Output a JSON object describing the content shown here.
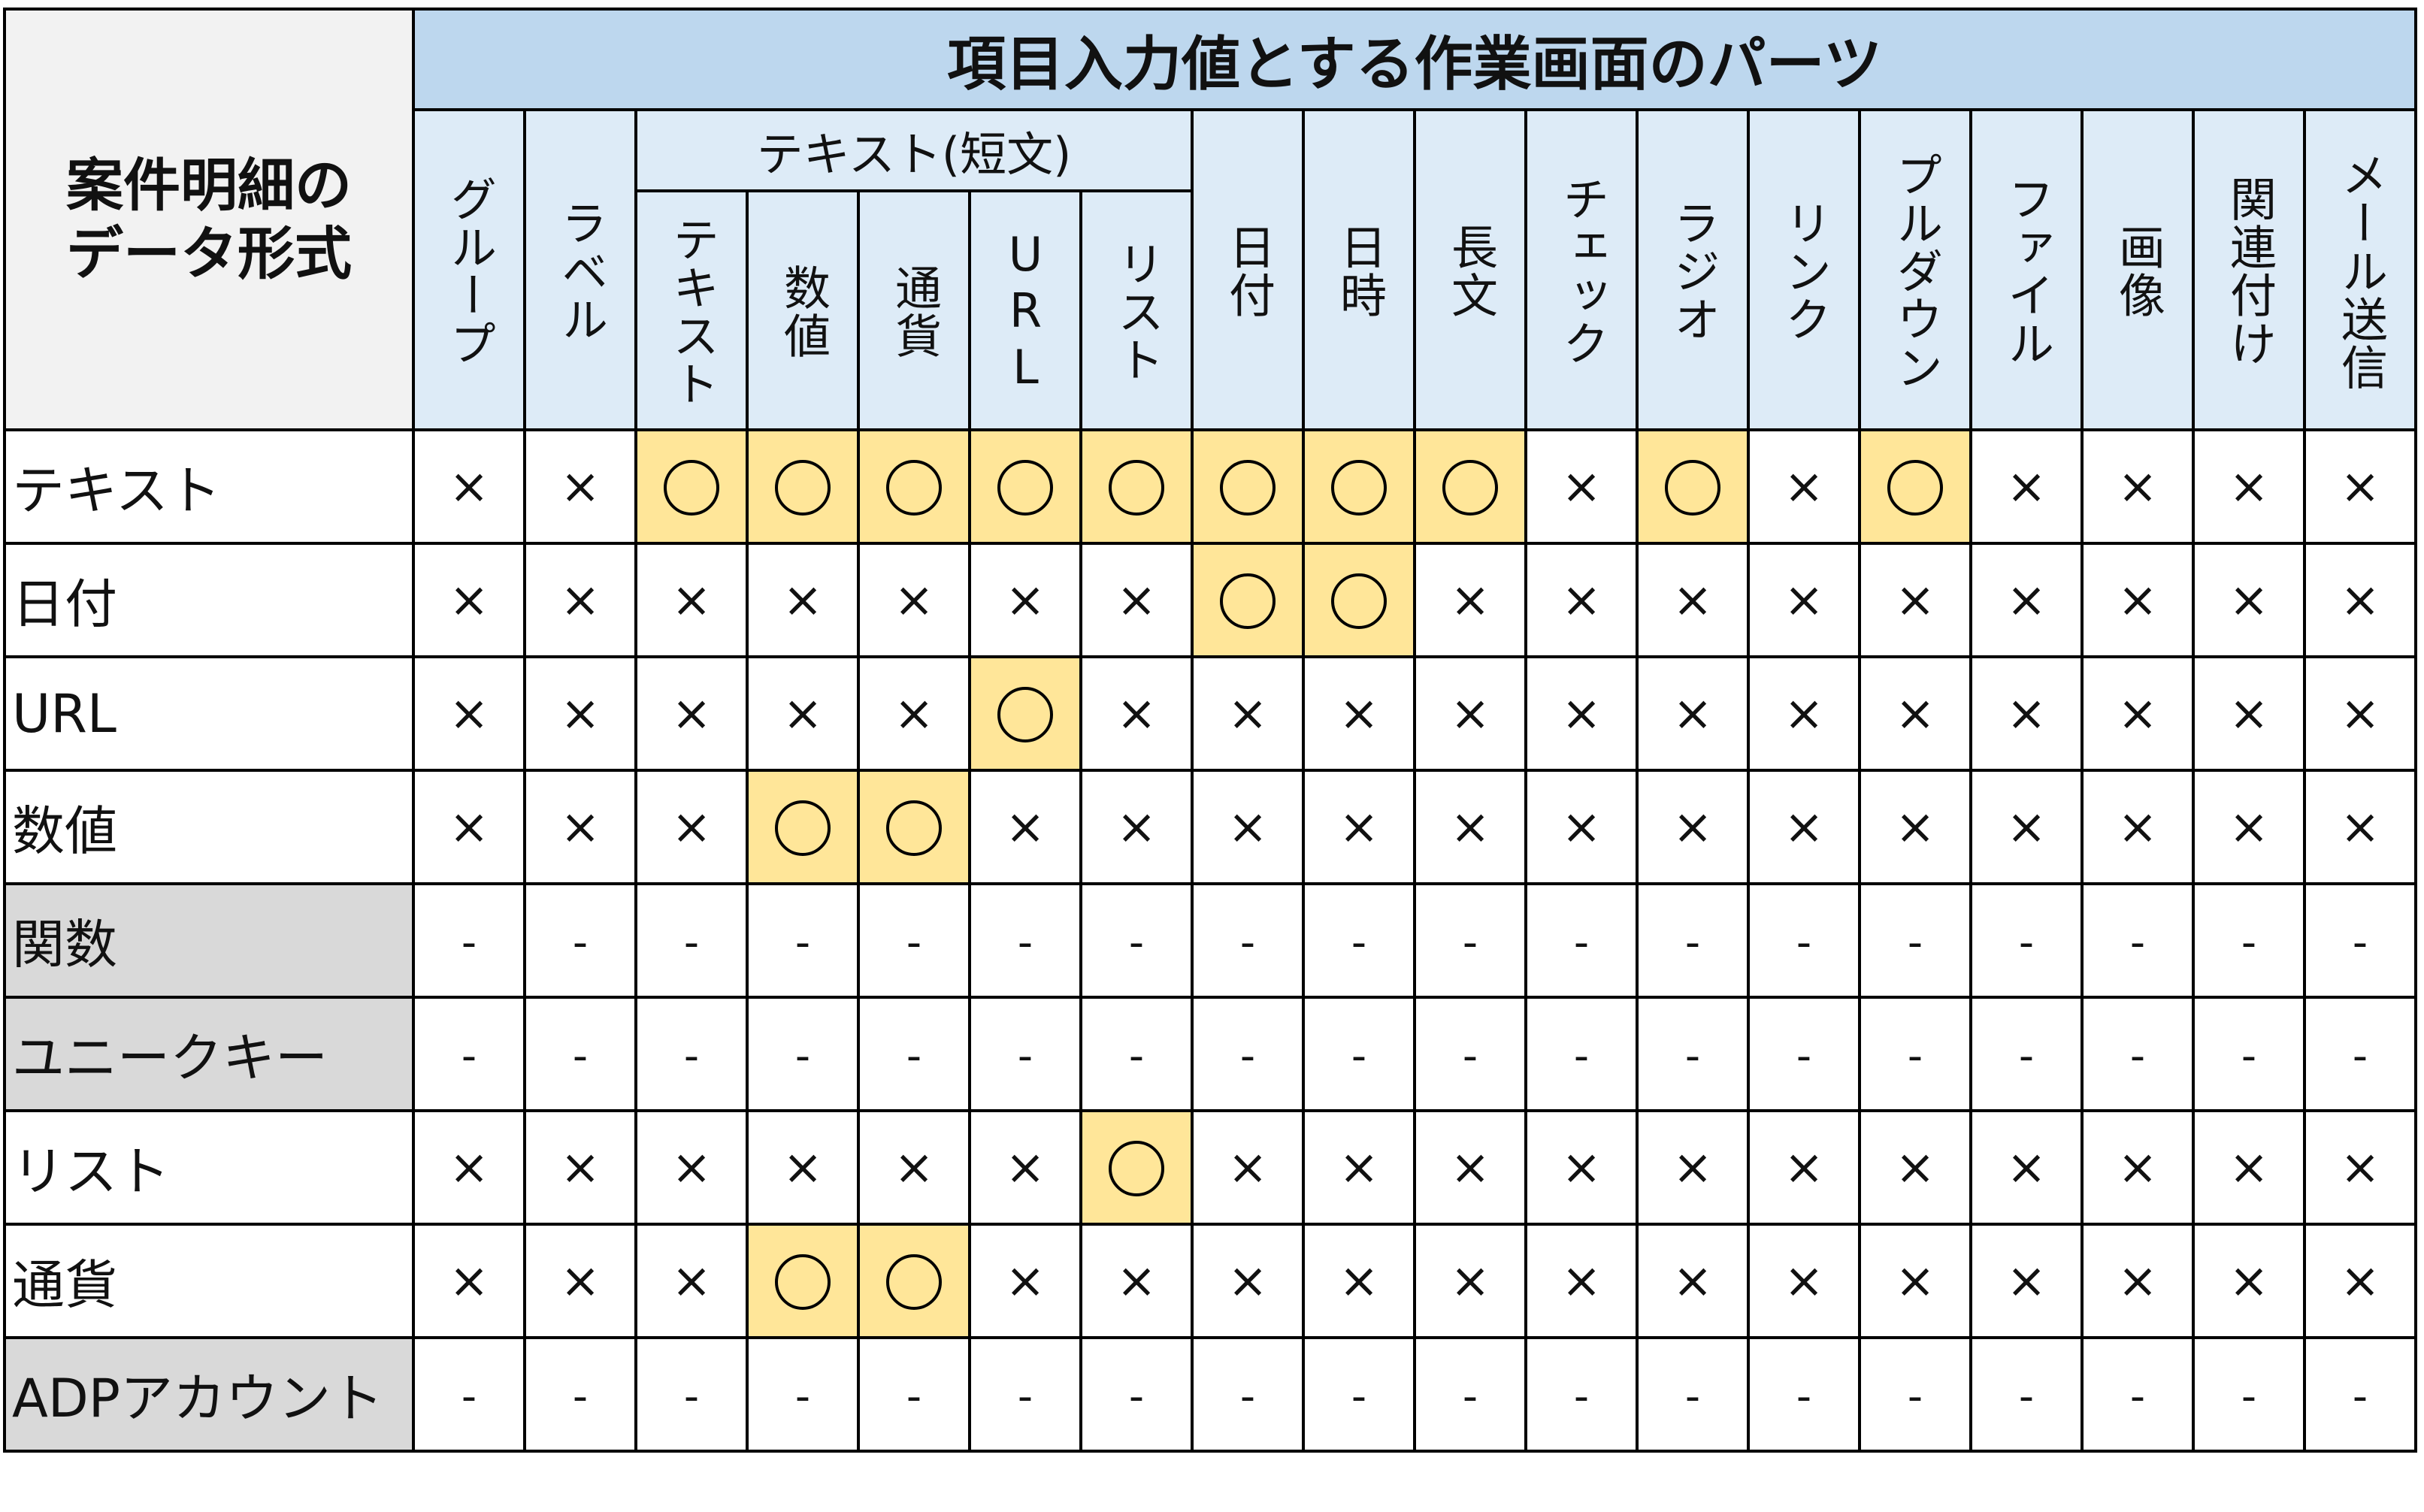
{
  "table": {
    "title": "項目入力値とする作業画面のパーツ",
    "corner_label_line1": "案件明細の",
    "corner_label_line2": "データ形式",
    "group_label": "テキスト(短文)",
    "columns": [
      "グループ",
      "ラベル",
      "テキスト",
      "数値",
      "通貨",
      "URL",
      "リスト",
      "日付",
      "日時",
      "長文",
      "チェック",
      "ラジオ",
      "リンク",
      "プルダウン",
      "ファイル",
      "画像",
      "関連付け",
      "メール送信"
    ],
    "symbols": {
      "yes": "○",
      "no": "×",
      "na": "-"
    },
    "rows": [
      {
        "label": "テキスト",
        "gray": false,
        "cells": [
          "no",
          "no",
          "yes",
          "yes",
          "yes",
          "yes",
          "yes",
          "yes",
          "yes",
          "yes",
          "no",
          "yes",
          "no",
          "yes",
          "no",
          "no",
          "no",
          "no"
        ]
      },
      {
        "label": "日付",
        "gray": false,
        "cells": [
          "no",
          "no",
          "no",
          "no",
          "no",
          "no",
          "no",
          "yes",
          "yes",
          "no",
          "no",
          "no",
          "no",
          "no",
          "no",
          "no",
          "no",
          "no"
        ]
      },
      {
        "label": "URL",
        "gray": false,
        "cells": [
          "no",
          "no",
          "no",
          "no",
          "no",
          "yes",
          "no",
          "no",
          "no",
          "no",
          "no",
          "no",
          "no",
          "no",
          "no",
          "no",
          "no",
          "no"
        ]
      },
      {
        "label": "数値",
        "gray": false,
        "cells": [
          "no",
          "no",
          "no",
          "yes",
          "yes",
          "no",
          "no",
          "no",
          "no",
          "no",
          "no",
          "no",
          "no",
          "no",
          "no",
          "no",
          "no",
          "no"
        ]
      },
      {
        "label": "関数",
        "gray": true,
        "cells": [
          "na",
          "na",
          "na",
          "na",
          "na",
          "na",
          "na",
          "na",
          "na",
          "na",
          "na",
          "na",
          "na",
          "na",
          "na",
          "na",
          "na",
          "na"
        ]
      },
      {
        "label": "ユニークキー",
        "gray": true,
        "cells": [
          "na",
          "na",
          "na",
          "na",
          "na",
          "na",
          "na",
          "na",
          "na",
          "na",
          "na",
          "na",
          "na",
          "na",
          "na",
          "na",
          "na",
          "na"
        ]
      },
      {
        "label": "リスト",
        "gray": false,
        "cells": [
          "no",
          "no",
          "no",
          "no",
          "no",
          "no",
          "yes",
          "no",
          "no",
          "no",
          "no",
          "no",
          "no",
          "no",
          "no",
          "no",
          "no",
          "no"
        ]
      },
      {
        "label": "通貨",
        "gray": false,
        "cells": [
          "no",
          "no",
          "no",
          "yes",
          "yes",
          "no",
          "no",
          "no",
          "no",
          "no",
          "no",
          "no",
          "no",
          "no",
          "no",
          "no",
          "no",
          "no"
        ]
      },
      {
        "label": "ADPアカウント",
        "gray": true,
        "cells": [
          "na",
          "na",
          "na",
          "na",
          "na",
          "na",
          "na",
          "na",
          "na",
          "na",
          "na",
          "na",
          "na",
          "na",
          "na",
          "na",
          "na",
          "na"
        ]
      }
    ],
    "colors": {
      "title_bg": "#bdd7ee",
      "header_bg": "#ddebf7",
      "corner_bg": "#f2f2f2",
      "yes_bg": "#ffe699",
      "na_row_bg": "#d9d9d9"
    }
  }
}
